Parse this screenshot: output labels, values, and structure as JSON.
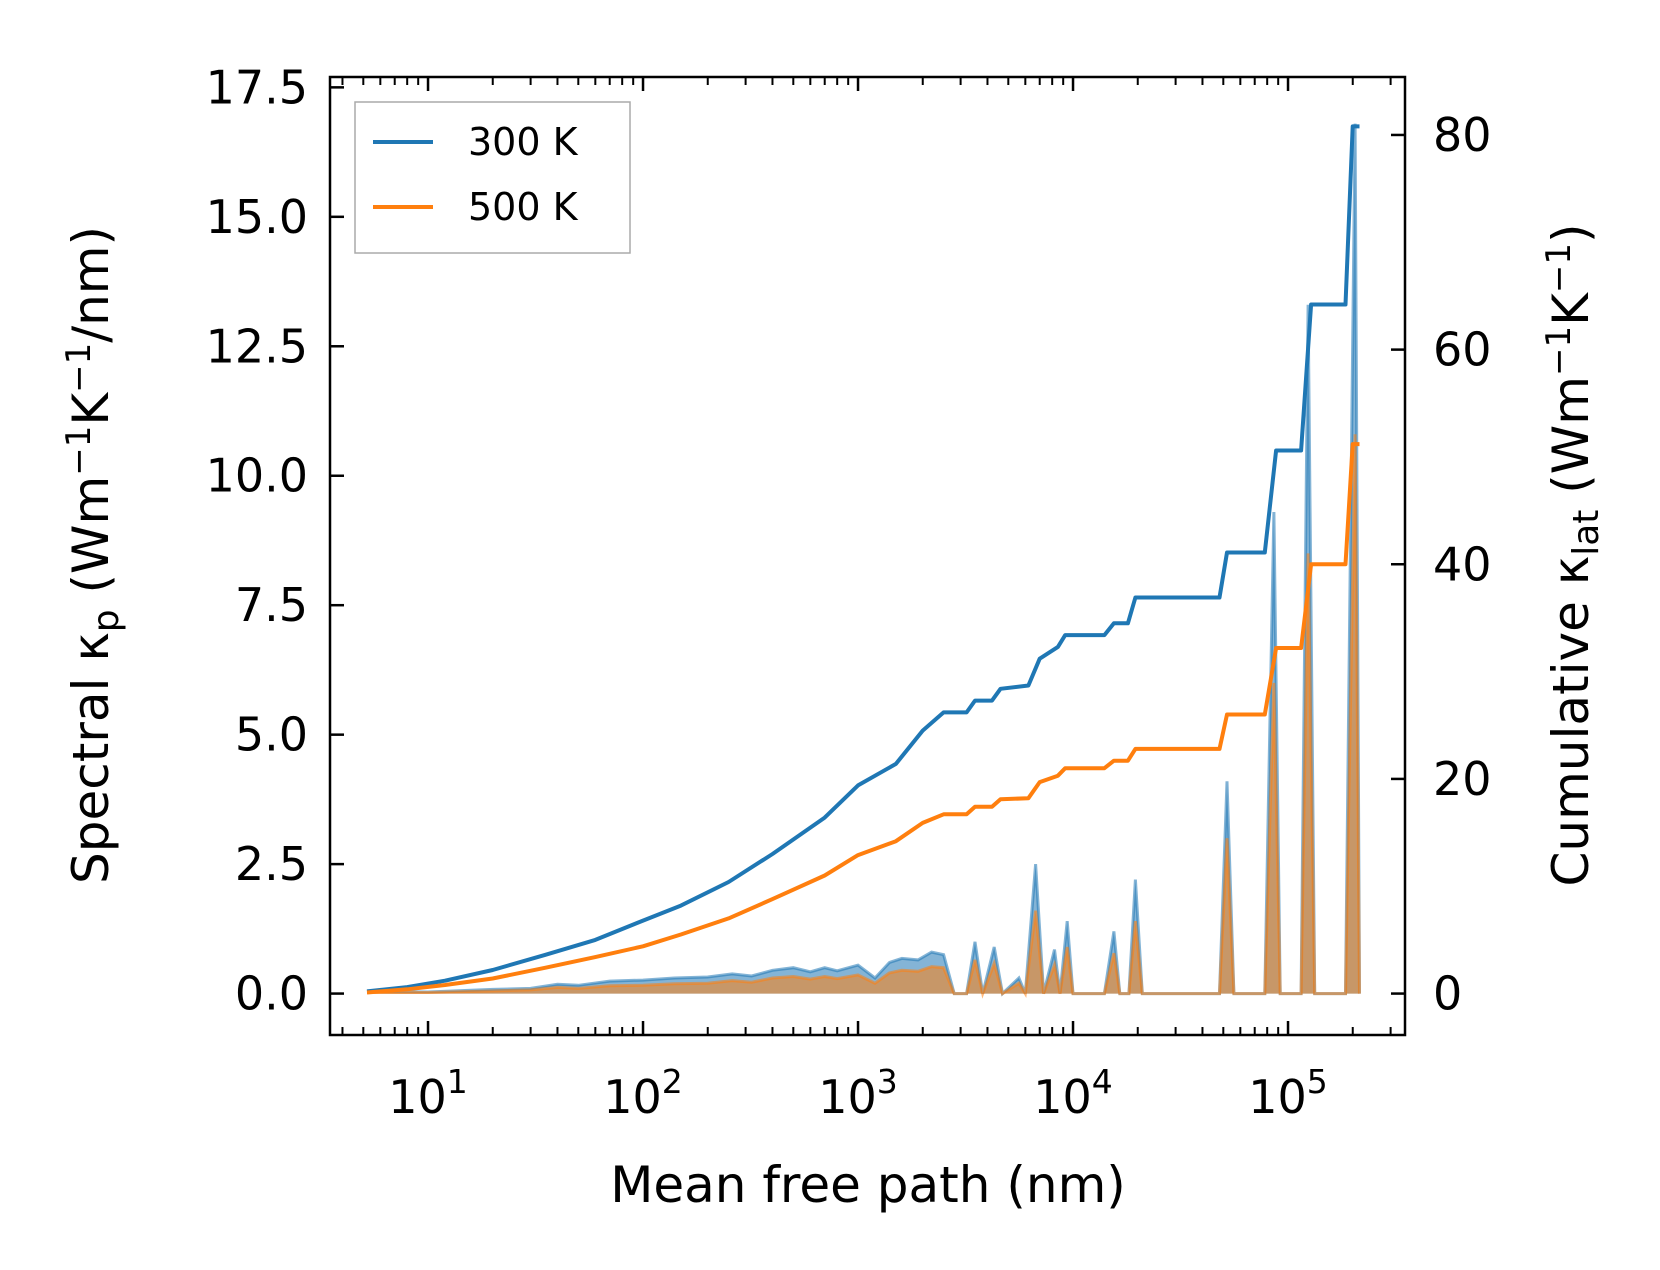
{
  "chart_data": {
    "type": "line",
    "xlabel": "Mean free path (nm)",
    "ylabel_left": "Spectral κp (Wm−1K−1/nm)",
    "ylabel_right": "Cumulative κlat (Wm−1K−1)",
    "ylabel_left_parts": {
      "pre": "Spectral κ",
      "sub": "p",
      "mid": " (Wm",
      "sup1": "−1",
      "mid2": "K",
      "sup2": "−1",
      "post": "/nm)"
    },
    "ylabel_right_parts": {
      "pre": "Cumulative κ",
      "sub": "lat",
      "mid": " (Wm",
      "sup1": "−1",
      "mid2": "K",
      "sup2": "−1",
      "post": ")"
    },
    "xscale": "log",
    "xlim": [
      3.5,
      350000
    ],
    "ylim_left": [
      -0.8,
      17.7
    ],
    "ylim_right": [
      -3.86,
      85.4
    ],
    "x_ticks": [
      {
        "base": "10",
        "exp": "1",
        "value": 10
      },
      {
        "base": "10",
        "exp": "2",
        "value": 100
      },
      {
        "base": "10",
        "exp": "3",
        "value": 1000
      },
      {
        "base": "10",
        "exp": "4",
        "value": 10000
      },
      {
        "base": "10",
        "exp": "5",
        "value": 100000
      }
    ],
    "y_ticks_left": [
      "0.0",
      "2.5",
      "5.0",
      "7.5",
      "10.0",
      "12.5",
      "15.0",
      "17.5"
    ],
    "y_ticks_right": [
      "0",
      "20",
      "40",
      "60",
      "80"
    ],
    "legend": {
      "position": "top-left",
      "entries": [
        "300 K",
        "500 K"
      ]
    },
    "colors": {
      "300 K": "#1f77b4",
      "500 K": "#ff7f0e"
    },
    "series": [
      {
        "name": "300 K",
        "axis": "right",
        "kind": "cumulative",
        "points": [
          [
            5.2,
            0.2
          ],
          [
            8,
            0.6
          ],
          [
            12,
            1.2
          ],
          [
            20,
            2.2
          ],
          [
            35,
            3.6
          ],
          [
            60,
            5.0
          ],
          [
            100,
            6.8
          ],
          [
            150,
            8.2
          ],
          [
            250,
            10.4
          ],
          [
            400,
            13.0
          ],
          [
            700,
            16.4
          ],
          [
            1000,
            19.4
          ],
          [
            1500,
            21.4
          ],
          [
            2000,
            24.5
          ],
          [
            2500,
            26.2
          ],
          [
            3200,
            26.2
          ],
          [
            3500,
            27.3
          ],
          [
            4200,
            27.3
          ],
          [
            4600,
            28.4
          ],
          [
            6200,
            28.7
          ],
          [
            7000,
            31.2
          ],
          [
            8500,
            32.3
          ],
          [
            9200,
            33.4
          ],
          [
            14000,
            33.4
          ],
          [
            15500,
            34.5
          ],
          [
            18000,
            34.5
          ],
          [
            19500,
            36.9
          ],
          [
            48000,
            36.9
          ],
          [
            52000,
            41.1
          ],
          [
            78000,
            41.1
          ],
          [
            88000,
            50.6
          ],
          [
            115000,
            50.6
          ],
          [
            128000,
            64.2
          ],
          [
            185000,
            64.2
          ],
          [
            200000,
            80.8
          ],
          [
            215000,
            80.8
          ]
        ]
      },
      {
        "name": "500 K",
        "axis": "right",
        "kind": "cumulative",
        "points": [
          [
            5.2,
            0.1
          ],
          [
            8,
            0.4
          ],
          [
            12,
            0.8
          ],
          [
            20,
            1.4
          ],
          [
            35,
            2.4
          ],
          [
            60,
            3.4
          ],
          [
            100,
            4.4
          ],
          [
            150,
            5.5
          ],
          [
            250,
            7.0
          ],
          [
            400,
            8.8
          ],
          [
            700,
            11.0
          ],
          [
            1000,
            12.9
          ],
          [
            1500,
            14.2
          ],
          [
            2000,
            15.9
          ],
          [
            2500,
            16.7
          ],
          [
            3200,
            16.7
          ],
          [
            3500,
            17.4
          ],
          [
            4200,
            17.4
          ],
          [
            4600,
            18.1
          ],
          [
            6200,
            18.2
          ],
          [
            7000,
            19.7
          ],
          [
            8500,
            20.3
          ],
          [
            9200,
            21.0
          ],
          [
            14000,
            21.0
          ],
          [
            15500,
            21.7
          ],
          [
            18000,
            21.7
          ],
          [
            19500,
            22.8
          ],
          [
            48000,
            22.8
          ],
          [
            52000,
            26.0
          ],
          [
            78000,
            26.0
          ],
          [
            88000,
            32.2
          ],
          [
            115000,
            32.2
          ],
          [
            128000,
            40.0
          ],
          [
            185000,
            40.0
          ],
          [
            200000,
            51.2
          ],
          [
            215000,
            51.2
          ]
        ]
      },
      {
        "name": "300 K spectral",
        "axis": "left",
        "kind": "spectral",
        "points": [
          [
            5.2,
            0.04
          ],
          [
            10,
            0.03
          ],
          [
            20,
            0.08
          ],
          [
            30,
            0.1
          ],
          [
            40,
            0.18
          ],
          [
            50,
            0.16
          ],
          [
            70,
            0.24
          ],
          [
            100,
            0.26
          ],
          [
            140,
            0.3
          ],
          [
            200,
            0.32
          ],
          [
            260,
            0.38
          ],
          [
            320,
            0.34
          ],
          [
            400,
            0.45
          ],
          [
            500,
            0.5
          ],
          [
            600,
            0.42
          ],
          [
            700,
            0.5
          ],
          [
            800,
            0.44
          ],
          [
            1000,
            0.55
          ],
          [
            1200,
            0.3
          ],
          [
            1400,
            0.6
          ],
          [
            1600,
            0.68
          ],
          [
            1900,
            0.65
          ],
          [
            2200,
            0.8
          ],
          [
            2500,
            0.75
          ],
          [
            2800,
            0.0
          ],
          [
            3200,
            0.0
          ],
          [
            3500,
            1.0
          ],
          [
            3800,
            0.0
          ],
          [
            4300,
            0.9
          ],
          [
            4700,
            0.0
          ],
          [
            5600,
            0.3
          ],
          [
            6000,
            0.0
          ],
          [
            6700,
            2.5
          ],
          [
            7300,
            0.0
          ],
          [
            8200,
            0.85
          ],
          [
            8700,
            0.0
          ],
          [
            9400,
            1.4
          ],
          [
            10000,
            0.0
          ],
          [
            14000,
            0.0
          ],
          [
            15500,
            1.2
          ],
          [
            16500,
            0.0
          ],
          [
            18200,
            0.0
          ],
          [
            19500,
            2.2
          ],
          [
            21000,
            0.0
          ],
          [
            48000,
            0.0
          ],
          [
            52000,
            4.1
          ],
          [
            56000,
            0.0
          ],
          [
            78000,
            0.0
          ],
          [
            86000,
            9.3
          ],
          [
            92000,
            0.0
          ],
          [
            115000,
            0.0
          ],
          [
            124000,
            13.3
          ],
          [
            133000,
            0.0
          ],
          [
            185000,
            0.0
          ],
          [
            205000,
            16.8
          ],
          [
            215000,
            0.0
          ]
        ]
      },
      {
        "name": "500 K spectral",
        "axis": "left",
        "kind": "spectral",
        "points": [
          [
            5.2,
            0.02
          ],
          [
            10,
            0.02
          ],
          [
            20,
            0.05
          ],
          [
            30,
            0.07
          ],
          [
            40,
            0.12
          ],
          [
            50,
            0.1
          ],
          [
            70,
            0.15
          ],
          [
            100,
            0.16
          ],
          [
            140,
            0.19
          ],
          [
            200,
            0.2
          ],
          [
            260,
            0.25
          ],
          [
            320,
            0.22
          ],
          [
            400,
            0.3
          ],
          [
            500,
            0.33
          ],
          [
            600,
            0.28
          ],
          [
            700,
            0.33
          ],
          [
            800,
            0.29
          ],
          [
            1000,
            0.36
          ],
          [
            1200,
            0.2
          ],
          [
            1400,
            0.4
          ],
          [
            1600,
            0.45
          ],
          [
            1900,
            0.43
          ],
          [
            2200,
            0.52
          ],
          [
            2500,
            0.5
          ],
          [
            2800,
            0.0
          ],
          [
            3200,
            0.0
          ],
          [
            3500,
            0.65
          ],
          [
            3800,
            0.0
          ],
          [
            4300,
            0.58
          ],
          [
            4700,
            0.0
          ],
          [
            5600,
            0.2
          ],
          [
            6000,
            0.0
          ],
          [
            6700,
            1.6
          ],
          [
            7300,
            0.0
          ],
          [
            8200,
            0.55
          ],
          [
            8700,
            0.0
          ],
          [
            9400,
            0.9
          ],
          [
            10000,
            0.0
          ],
          [
            14000,
            0.0
          ],
          [
            15500,
            0.78
          ],
          [
            16500,
            0.0
          ],
          [
            18200,
            0.0
          ],
          [
            19500,
            1.4
          ],
          [
            21000,
            0.0
          ],
          [
            48000,
            0.0
          ],
          [
            52000,
            3.0
          ],
          [
            56000,
            0.0
          ],
          [
            78000,
            0.0
          ],
          [
            86000,
            6.0
          ],
          [
            92000,
            0.0
          ],
          [
            115000,
            0.0
          ],
          [
            124000,
            8.5
          ],
          [
            133000,
            0.0
          ],
          [
            185000,
            0.0
          ],
          [
            205000,
            10.8
          ],
          [
            215000,
            0.0
          ]
        ]
      }
    ]
  }
}
